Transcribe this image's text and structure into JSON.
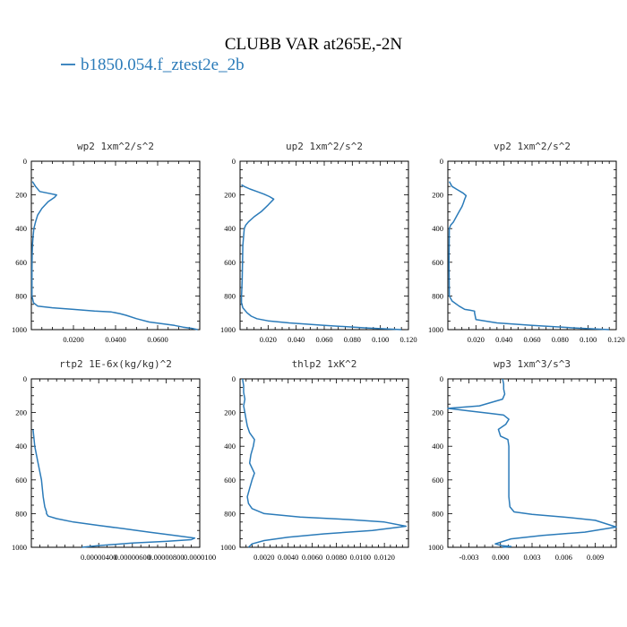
{
  "title": "CLUBB VAR at265E,-2N",
  "legend": {
    "label": "b1850.054.f_ztest2e_2b",
    "color": "#2b7bb9"
  },
  "chart_data": [
    {
      "type": "line",
      "title": "wp2  1xm^2/s^2",
      "xlim": [
        0,
        0.08
      ],
      "ylim": [
        1000,
        0
      ],
      "xticks": [
        0.02,
        0.04,
        0.06
      ],
      "xtick_labels": [
        "0.0200",
        "0.0400",
        "0.0600"
      ],
      "yticks": [
        0,
        200,
        400,
        600,
        800,
        1000
      ],
      "series": [
        {
          "x": [
            0.0005,
            0.002,
            0.004,
            0.008,
            0.012,
            0.011,
            0.008,
            0.005,
            0.003,
            0.002,
            0.0012,
            0.0008,
            0.0005,
            0.0004,
            0.0003,
            0.0003,
            0.001,
            0.003,
            0.01,
            0.02,
            0.03,
            0.038,
            0.042,
            0.045,
            0.05,
            0.056,
            0.062,
            0.068,
            0.072,
            0.076,
            0.079
          ],
          "y": [
            120,
            150,
            180,
            190,
            200,
            215,
            240,
            280,
            320,
            360,
            400,
            450,
            500,
            560,
            650,
            800,
            840,
            860,
            870,
            880,
            890,
            895,
            905,
            915,
            935,
            955,
            965,
            975,
            985,
            992,
            1000
          ]
        }
      ]
    },
    {
      "type": "line",
      "title": "up2  1xm^2/s^2",
      "xlim": [
        0,
        0.12
      ],
      "ylim": [
        1000,
        0
      ],
      "xticks": [
        0.02,
        0.04,
        0.06,
        0.08,
        0.1,
        0.12
      ],
      "xtick_labels": [
        "0.020",
        "0.040",
        "0.060",
        "0.080",
        "0.100",
        "0.120"
      ],
      "yticks": [
        0,
        200,
        400,
        600,
        800,
        1000
      ],
      "series": [
        {
          "x": [
            0.001,
            0.003,
            0.007,
            0.012,
            0.017,
            0.021,
            0.024,
            0.02,
            0.015,
            0.01,
            0.006,
            0.004,
            0.003,
            0.002,
            0.0015,
            0.001,
            0.001,
            0.002,
            0.005,
            0.008,
            0.012,
            0.02,
            0.035,
            0.06,
            0.09,
            0.115
          ],
          "y": [
            140,
            150,
            165,
            180,
            195,
            210,
            225,
            260,
            300,
            330,
            360,
            380,
            400,
            500,
            700,
            810,
            840,
            870,
            900,
            920,
            935,
            948,
            960,
            975,
            990,
            1000
          ]
        }
      ]
    },
    {
      "type": "line",
      "title": "vp2  1xm^2/s^2",
      "xlim": [
        0,
        0.12
      ],
      "ylim": [
        1000,
        0
      ],
      "xticks": [
        0.02,
        0.04,
        0.06,
        0.08,
        0.1,
        0.12
      ],
      "xtick_labels": [
        "0.020",
        "0.040",
        "0.060",
        "0.080",
        "0.100",
        "0.120"
      ],
      "yticks": [
        0,
        200,
        400,
        600,
        800,
        1000
      ],
      "series": [
        {
          "x": [
            0.001,
            0.003,
            0.007,
            0.011,
            0.013,
            0.012,
            0.011,
            0.01,
            0.008,
            0.006,
            0.004,
            0.002,
            0.001,
            0.0008,
            0.001,
            0.003,
            0.008,
            0.012,
            0.016,
            0.019,
            0.019,
            0.02,
            0.035,
            0.06,
            0.09,
            0.115
          ],
          "y": [
            120,
            150,
            170,
            190,
            205,
            225,
            250,
            270,
            300,
            330,
            360,
            380,
            400,
            600,
            800,
            830,
            860,
            880,
            885,
            890,
            900,
            940,
            960,
            975,
            990,
            1000
          ]
        }
      ]
    },
    {
      "type": "line",
      "title": "rtp2  1E-6x(kg/kg)^2",
      "xlim": [
        0,
        1e-05
      ],
      "ylim": [
        1000,
        0
      ],
      "xticks": [
        4e-06,
        6e-06,
        8e-06,
        1e-05
      ],
      "xtick_labels": [
        "0.00000400",
        "0.00000600",
        "0.00000800",
        "0.0000100"
      ],
      "yticks": [
        0,
        200,
        400,
        600,
        800,
        1000
      ],
      "series": [
        {
          "x": [
            1e-07,
            2e-07,
            4e-07,
            6e-07,
            7e-07,
            8e-07,
            9e-07,
            9e-07,
            1e-06,
            1.5e-06,
            2.5e-06,
            4e-06,
            5.5e-06,
            7e-06,
            8.5e-06,
            9.7e-06,
            9.5e-06,
            8e-06,
            6e-06,
            4e-06,
            3e-06
          ],
          "y": [
            300,
            400,
            500,
            600,
            700,
            760,
            790,
            800,
            815,
            830,
            850,
            870,
            890,
            910,
            930,
            945,
            955,
            965,
            975,
            990,
            1000
          ]
        }
      ]
    },
    {
      "type": "line",
      "title": "thlp2  1xK^2",
      "xlim": [
        0,
        0.014
      ],
      "ylim": [
        1000,
        0
      ],
      "xticks": [
        0.002,
        0.004,
        0.006,
        0.008,
        0.01,
        0.012
      ],
      "xtick_labels": [
        "0.0020",
        "0.0040",
        "0.0060",
        "0.0080",
        "0.0100",
        "0.0120"
      ],
      "yticks": [
        0,
        200,
        400,
        600,
        800,
        1000
      ],
      "series": [
        {
          "x": [
            0.0002,
            0.0003,
            0.0003,
            0.0004,
            0.0003,
            0.0004,
            0.0005,
            0.0006,
            0.0008,
            0.0012,
            0.0011,
            0.0009,
            0.0008,
            0.0012,
            0.001,
            0.0008,
            0.0006,
            0.0007,
            0.001,
            0.002,
            0.005,
            0.009,
            0.012,
            0.0138,
            0.011,
            0.007,
            0.004,
            0.002,
            0.001,
            0.0007
          ],
          "y": [
            0,
            40,
            80,
            120,
            160,
            200,
            240,
            280,
            320,
            360,
            400,
            450,
            500,
            560,
            600,
            650,
            700,
            740,
            770,
            800,
            820,
            835,
            850,
            875,
            900,
            920,
            940,
            960,
            980,
            1000
          ]
        }
      ]
    },
    {
      "type": "line",
      "title": "wp3  1xm^3/s^3",
      "xlim": [
        -0.005,
        0.011
      ],
      "ylim": [
        1000,
        0
      ],
      "xticks": [
        -0.003,
        0,
        0.003,
        0.006,
        0.009
      ],
      "xtick_labels": [
        "-0.003",
        "0.000",
        "0.003",
        "0.006",
        "0.009"
      ],
      "yticks": [
        0,
        200,
        400,
        600,
        800,
        1000
      ],
      "series": [
        {
          "x": [
            0.0002,
            0.0003,
            0.0003,
            0.0004,
            0.0002,
            -0.002,
            -0.005,
            -0.003,
            -0.001,
            0.0003,
            0.0008,
            0.0005,
            -0.0002,
            0,
            0.0007,
            0.0008,
            0.0008,
            0.0008,
            0.0008,
            0.0009,
            0.0013,
            0.003,
            0.006,
            0.009,
            0.011,
            0.008,
            0.004,
            0.001,
            -0.0005,
            0.0001,
            0.001,
            0.0002
          ],
          "y": [
            0,
            30,
            60,
            90,
            120,
            160,
            175,
            190,
            205,
            215,
            240,
            270,
            300,
            340,
            360,
            400,
            500,
            600,
            700,
            760,
            790,
            805,
            820,
            840,
            880,
            910,
            930,
            950,
            980,
            990,
            995,
            1000
          ]
        }
      ]
    }
  ]
}
